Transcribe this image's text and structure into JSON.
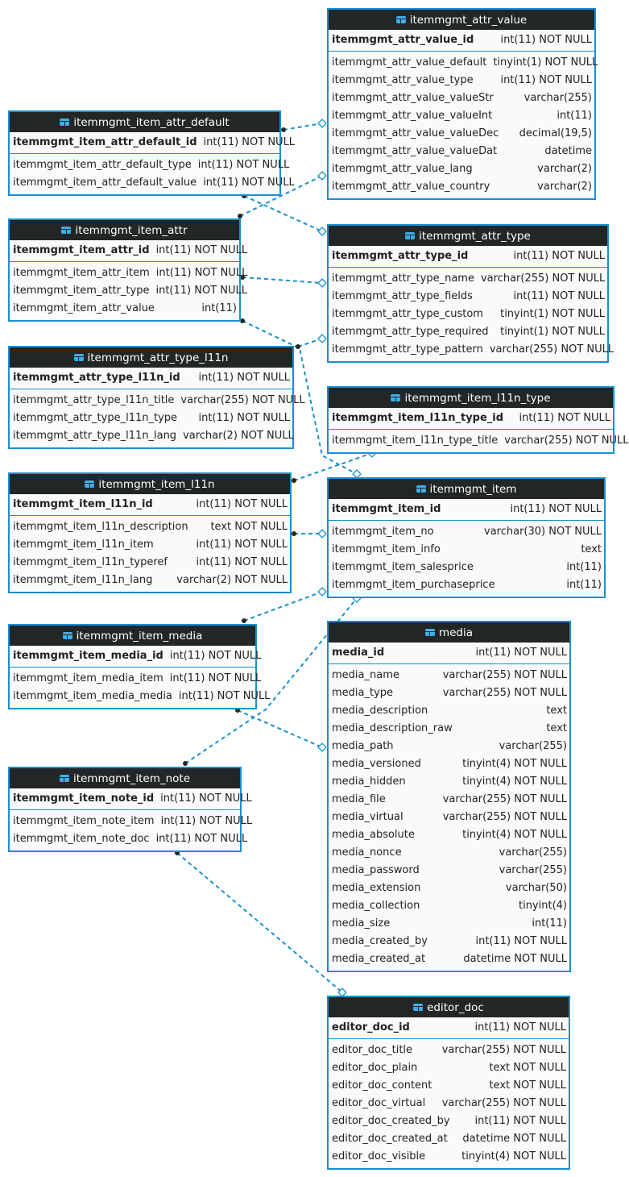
{
  "colors": {
    "border": "#1a8fd0",
    "header_bg": "#232627",
    "header_text": "#ffffff",
    "link": "#1a8fd0"
  },
  "icon": "table-icon",
  "tables": [
    {
      "id": "itemmgmt_attr_value",
      "name": "itemmgmt_attr_value",
      "pk": [
        "itemmgmt_attr_value_id",
        "int(11) NOT NULL"
      ],
      "columns": [
        [
          "itemmgmt_attr_value_default",
          "tinyint(1) NOT NULL"
        ],
        [
          "itemmgmt_attr_value_type",
          "int(11) NOT NULL"
        ],
        [
          "itemmgmt_attr_value_valueStr",
          "varchar(255)"
        ],
        [
          "itemmgmt_attr_value_valueInt",
          "int(11)"
        ],
        [
          "itemmgmt_attr_value_valueDec",
          "decimal(19,5)"
        ],
        [
          "itemmgmt_attr_value_valueDat",
          "datetime"
        ],
        [
          "itemmgmt_attr_value_lang",
          "varchar(2)"
        ],
        [
          "itemmgmt_attr_value_country",
          "varchar(2)"
        ]
      ]
    },
    {
      "id": "itemmgmt_item_attr_default",
      "name": "itemmgmt_item_attr_default",
      "pk": [
        "itemmgmt_item_attr_default_id",
        "int(11) NOT NULL"
      ],
      "columns": [
        [
          "itemmgmt_item_attr_default_type",
          "int(11) NOT NULL"
        ],
        [
          "itemmgmt_item_attr_default_value",
          "int(11) NOT NULL"
        ]
      ]
    },
    {
      "id": "itemmgmt_item_attr",
      "name": "itemmgmt_item_attr",
      "pk": [
        "itemmgmt_item_attr_id",
        "int(11) NOT NULL"
      ],
      "columns": [
        [
          "itemmgmt_item_attr_item",
          "int(11) NOT NULL"
        ],
        [
          "itemmgmt_item_attr_type",
          "int(11) NOT NULL"
        ],
        [
          "itemmgmt_item_attr_value",
          "int(11)"
        ]
      ]
    },
    {
      "id": "itemmgmt_attr_type",
      "name": "itemmgmt_attr_type",
      "pk": [
        "itemmgmt_attr_type_id",
        "int(11) NOT NULL"
      ],
      "columns": [
        [
          "itemmgmt_attr_type_name",
          "varchar(255) NOT NULL"
        ],
        [
          "itemmgmt_attr_type_fields",
          "int(11) NOT NULL"
        ],
        [
          "itemmgmt_attr_type_custom",
          "tinyint(1) NOT NULL"
        ],
        [
          "itemmgmt_attr_type_required",
          "tinyint(1) NOT NULL"
        ],
        [
          "itemmgmt_attr_type_pattern",
          "varchar(255) NOT NULL"
        ]
      ]
    },
    {
      "id": "itemmgmt_attr_type_l11n",
      "name": "itemmgmt_attr_type_l11n",
      "pk": [
        "itemmgmt_attr_type_l11n_id",
        "int(11) NOT NULL"
      ],
      "columns": [
        [
          "itemmgmt_attr_type_l11n_title",
          "varchar(255) NOT NULL"
        ],
        [
          "itemmgmt_attr_type_l11n_type",
          "int(11) NOT NULL"
        ],
        [
          "itemmgmt_attr_type_l11n_lang",
          "varchar(2) NOT NULL"
        ]
      ]
    },
    {
      "id": "itemmgmt_item_l11n_type",
      "name": "itemmgmt_item_l11n_type",
      "pk": [
        "itemmgmt_item_l11n_type_id",
        "int(11) NOT NULL"
      ],
      "columns": [
        [
          "itemmgmt_item_l11n_type_title",
          "varchar(255) NOT NULL"
        ]
      ]
    },
    {
      "id": "itemmgmt_item_l11n",
      "name": "itemmgmt_item_l11n",
      "pk": [
        "itemmgmt_item_l11n_id",
        "int(11) NOT NULL"
      ],
      "columns": [
        [
          "itemmgmt_item_l11n_description",
          "text NOT NULL"
        ],
        [
          "itemmgmt_item_l11n_item",
          "int(11) NOT NULL"
        ],
        [
          "itemmgmt_item_l11n_typeref",
          "int(11) NOT NULL"
        ],
        [
          "itemmgmt_item_l11n_lang",
          "varchar(2) NOT NULL"
        ]
      ]
    },
    {
      "id": "itemmgmt_item",
      "name": "itemmgmt_item",
      "pk": [
        "itemmgmt_item_id",
        "int(11) NOT NULL"
      ],
      "columns": [
        [
          "itemmgmt_item_no",
          "varchar(30) NOT NULL"
        ],
        [
          "itemmgmt_item_info",
          "text"
        ],
        [
          "itemmgmt_item_salesprice",
          "int(11)"
        ],
        [
          "itemmgmt_item_purchaseprice",
          "int(11)"
        ]
      ]
    },
    {
      "id": "itemmgmt_item_media",
      "name": "itemmgmt_item_media",
      "pk": [
        "itemmgmt_item_media_id",
        "int(11) NOT NULL"
      ],
      "columns": [
        [
          "itemmgmt_item_media_item",
          "int(11) NOT NULL"
        ],
        [
          "itemmgmt_item_media_media",
          "int(11) NOT NULL"
        ]
      ]
    },
    {
      "id": "media",
      "name": "media",
      "pk": [
        "media_id",
        "int(11) NOT NULL"
      ],
      "columns": [
        [
          "media_name",
          "varchar(255) NOT NULL"
        ],
        [
          "media_type",
          "varchar(255) NOT NULL"
        ],
        [
          "media_description",
          "text"
        ],
        [
          "media_description_raw",
          "text"
        ],
        [
          "media_path",
          "varchar(255)"
        ],
        [
          "media_versioned",
          "tinyint(4) NOT NULL"
        ],
        [
          "media_hidden",
          "tinyint(4) NOT NULL"
        ],
        [
          "media_file",
          "varchar(255) NOT NULL"
        ],
        [
          "media_virtual",
          "varchar(255) NOT NULL"
        ],
        [
          "media_absolute",
          "tinyint(4) NOT NULL"
        ],
        [
          "media_nonce",
          "varchar(255)"
        ],
        [
          "media_password",
          "varchar(255)"
        ],
        [
          "media_extension",
          "varchar(50)"
        ],
        [
          "media_collection",
          "tinyint(4)"
        ],
        [
          "media_size",
          "int(11)"
        ],
        [
          "media_created_by",
          "int(11) NOT NULL"
        ],
        [
          "media_created_at",
          "datetime NOT NULL"
        ]
      ]
    },
    {
      "id": "itemmgmt_item_note",
      "name": "itemmgmt_item_note",
      "pk": [
        "itemmgmt_item_note_id",
        "int(11) NOT NULL"
      ],
      "columns": [
        [
          "itemmgmt_item_note_item",
          "int(11) NOT NULL"
        ],
        [
          "itemmgmt_item_note_doc",
          "int(11) NOT NULL"
        ]
      ]
    },
    {
      "id": "editor_doc",
      "name": "editor_doc",
      "pk": [
        "editor_doc_id",
        "int(11) NOT NULL"
      ],
      "columns": [
        [
          "editor_doc_title",
          "varchar(255) NOT NULL"
        ],
        [
          "editor_doc_plain",
          "text NOT NULL"
        ],
        [
          "editor_doc_content",
          "text NOT NULL"
        ],
        [
          "editor_doc_virtual",
          "varchar(255) NOT NULL"
        ],
        [
          "editor_doc_created_by",
          "int(11) NOT NULL"
        ],
        [
          "editor_doc_created_at",
          "datetime NOT NULL"
        ],
        [
          "editor_doc_visible",
          "tinyint(4) NOT NULL"
        ]
      ]
    }
  ],
  "relations": [
    {
      "from": "itemmgmt_item_attr_default",
      "to": "itemmgmt_attr_value"
    },
    {
      "from": "itemmgmt_item_attr",
      "to": "itemmgmt_attr_value"
    },
    {
      "from": "itemmgmt_item_attr_default",
      "to": "itemmgmt_attr_type"
    },
    {
      "from": "itemmgmt_item_attr",
      "to": "itemmgmt_attr_type"
    },
    {
      "from": "itemmgmt_item_attr",
      "to": "itemmgmt_item"
    },
    {
      "from": "itemmgmt_attr_type_l11n",
      "to": "itemmgmt_attr_type"
    },
    {
      "from": "itemmgmt_item_l11n",
      "to": "itemmgmt_item_l11n_type"
    },
    {
      "from": "itemmgmt_item_l11n",
      "to": "itemmgmt_item"
    },
    {
      "from": "itemmgmt_item_media",
      "to": "itemmgmt_item"
    },
    {
      "from": "itemmgmt_item_note",
      "to": "itemmgmt_item"
    },
    {
      "from": "itemmgmt_item_media",
      "to": "media"
    },
    {
      "from": "itemmgmt_item_note",
      "to": "editor_doc"
    }
  ]
}
